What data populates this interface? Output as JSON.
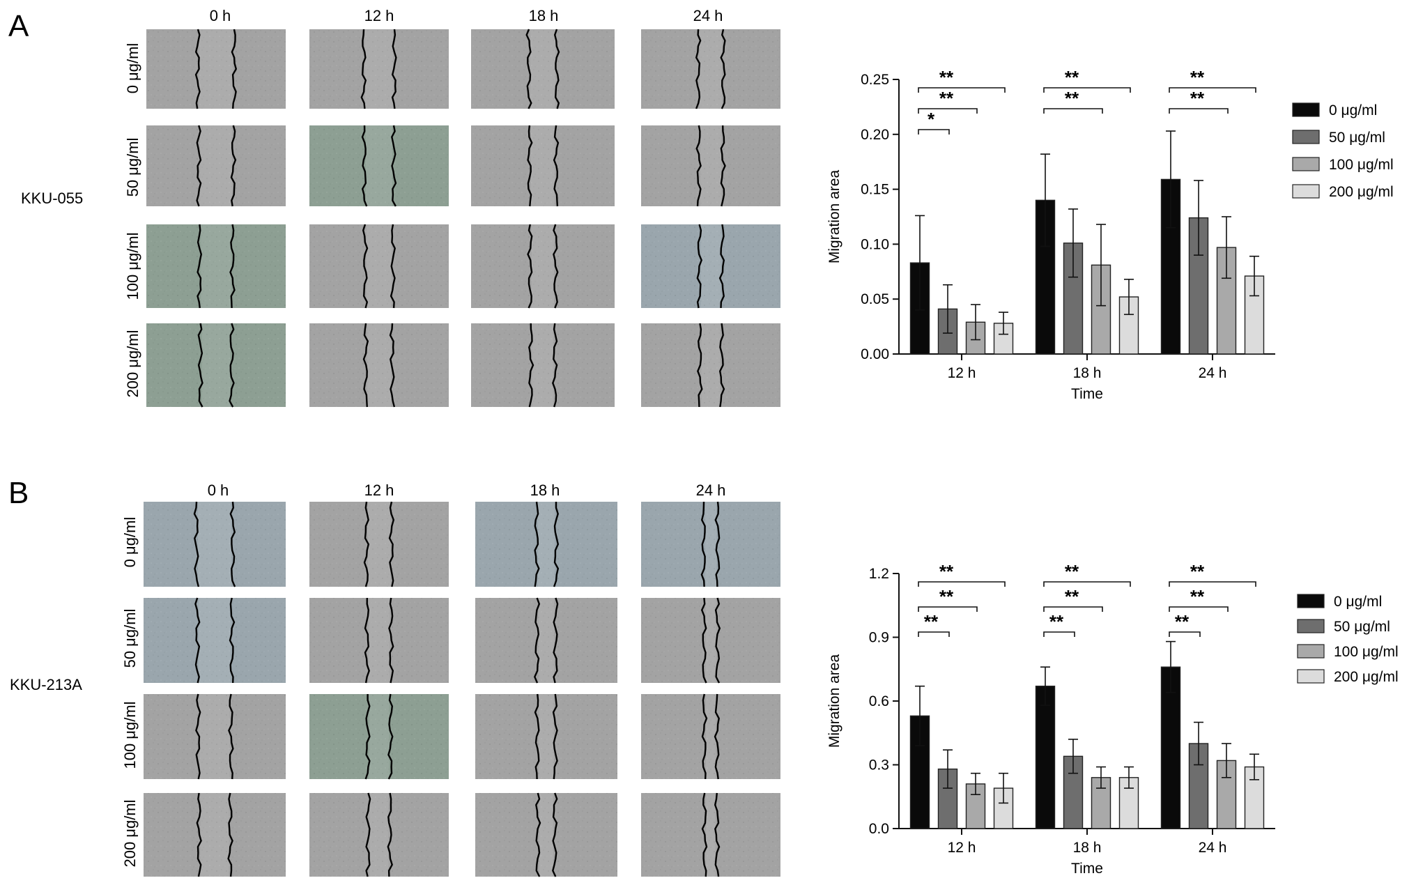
{
  "colors": {
    "bar_0": "#0a0a0a",
    "bar_50": "#6e6e6e",
    "bar_100": "#a9a9a9",
    "bar_200": "#dcdcdc",
    "cell_gray": "#a3a3a3",
    "cell_green": "#8d9f93",
    "cell_blue": "#9aa6ad"
  },
  "panels": [
    {
      "letter": "A",
      "cell_line": "KKU-055",
      "time_labels": [
        "0 h",
        "12 h",
        "18 h",
        "24 h"
      ],
      "row_labels": [
        "0 μg/ml",
        "50 μg/ml",
        "100 μg/ml",
        "200 μg/ml"
      ]
    },
    {
      "letter": "B",
      "cell_line": "KKU-213A",
      "time_labels": [
        "0 h",
        "12 h",
        "18 h",
        "24 h"
      ],
      "row_labels": [
        "0 μg/ml",
        "50 μg/ml",
        "100 μg/ml",
        "200 μg/ml"
      ]
    }
  ],
  "chart_data": [
    {
      "type": "bar",
      "categories": [
        "12 h",
        "18 h",
        "24 h"
      ],
      "xlabel": "Time",
      "ylabel": "Migration area",
      "ylim": [
        0,
        0.25
      ],
      "yticks": [
        "0.00",
        "0.05",
        "0.10",
        "0.15",
        "0.20",
        "0.25"
      ],
      "legend_position": "right",
      "series": [
        {
          "name": "0 μg/ml",
          "values": [
            0.083,
            0.14,
            0.159
          ],
          "errors": [
            0.043,
            0.042,
            0.044
          ]
        },
        {
          "name": "50 μg/ml",
          "values": [
            0.041,
            0.101,
            0.124
          ],
          "errors": [
            0.022,
            0.031,
            0.034
          ]
        },
        {
          "name": "100 μg/ml",
          "values": [
            0.029,
            0.081,
            0.097
          ],
          "errors": [
            0.016,
            0.037,
            0.028
          ]
        },
        {
          "name": "200 μg/ml",
          "values": [
            0.028,
            0.052,
            0.071
          ],
          "errors": [
            0.01,
            0.016,
            0.018
          ]
        }
      ],
      "significance": [
        {
          "category": 0,
          "from": 0,
          "to": 1,
          "label": "*"
        },
        {
          "category": 0,
          "from": 0,
          "to": 2,
          "label": "**"
        },
        {
          "category": 0,
          "from": 0,
          "to": 3,
          "label": "**"
        },
        {
          "category": 1,
          "from": 0,
          "to": 2,
          "label": "**"
        },
        {
          "category": 1,
          "from": 0,
          "to": 3,
          "label": "**"
        },
        {
          "category": 2,
          "from": 0,
          "to": 2,
          "label": "**"
        },
        {
          "category": 2,
          "from": 0,
          "to": 3,
          "label": "**"
        }
      ]
    },
    {
      "type": "bar",
      "categories": [
        "12 h",
        "18 h",
        "24 h"
      ],
      "xlabel": "Time",
      "ylabel": "Migration area",
      "ylim": [
        0,
        1.2
      ],
      "yticks": [
        "0.0",
        "0.3",
        "0.6",
        "0.9",
        "1.2"
      ],
      "legend_position": "right",
      "series": [
        {
          "name": "0 μg/ml",
          "values": [
            0.53,
            0.67,
            0.76
          ],
          "errors": [
            0.14,
            0.09,
            0.12
          ]
        },
        {
          "name": "50 μg/ml",
          "values": [
            0.28,
            0.34,
            0.4
          ],
          "errors": [
            0.09,
            0.08,
            0.1
          ]
        },
        {
          "name": "100 μg/ml",
          "values": [
            0.21,
            0.24,
            0.32
          ],
          "errors": [
            0.05,
            0.05,
            0.08
          ]
        },
        {
          "name": "200 μg/ml",
          "values": [
            0.19,
            0.24,
            0.29
          ],
          "errors": [
            0.07,
            0.05,
            0.06
          ]
        }
      ],
      "significance": [
        {
          "category": 0,
          "from": 0,
          "to": 1,
          "label": "**"
        },
        {
          "category": 0,
          "from": 0,
          "to": 2,
          "label": "**"
        },
        {
          "category": 0,
          "from": 0,
          "to": 3,
          "label": "**"
        },
        {
          "category": 1,
          "from": 0,
          "to": 1,
          "label": "**"
        },
        {
          "category": 1,
          "from": 0,
          "to": 2,
          "label": "**"
        },
        {
          "category": 1,
          "from": 0,
          "to": 3,
          "label": "**"
        },
        {
          "category": 2,
          "from": 0,
          "to": 1,
          "label": "**"
        },
        {
          "category": 2,
          "from": 0,
          "to": 2,
          "label": "**"
        },
        {
          "category": 2,
          "from": 0,
          "to": 3,
          "label": "**"
        }
      ]
    }
  ]
}
